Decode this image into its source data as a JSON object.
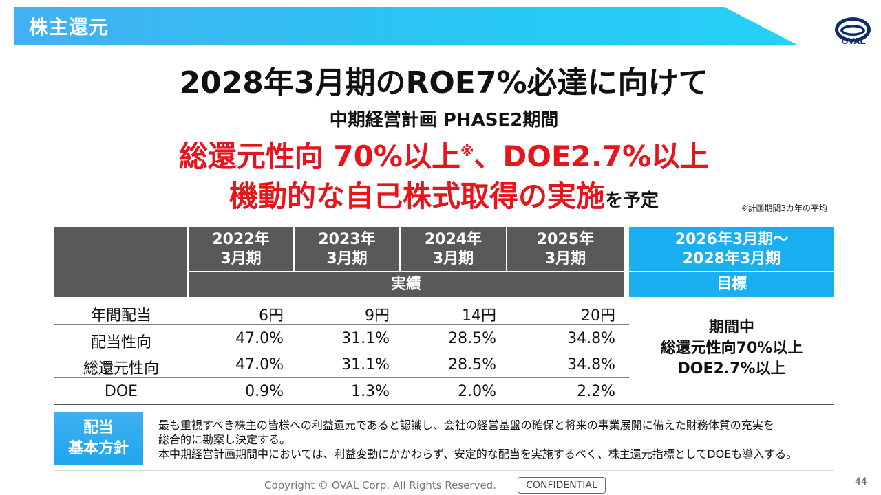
{
  "header": {
    "title": "株主還元",
    "logo_text": "OVAL"
  },
  "headline": "2028年3月期のROE7%必達に向けて",
  "subhead": "中期経営計画 PHASE2期間",
  "red_line1": {
    "main": "総還元性向 70%以上",
    "mark": "※",
    "tail": "、DOE2.7%以上"
  },
  "red_line2": {
    "main": "機動的な自己株式取得の実施",
    "suffix": "を予定"
  },
  "footnote": "※計画期間3カ年の平均",
  "table": {
    "years": [
      {
        "line1": "2022年",
        "line2": "3月期"
      },
      {
        "line1": "2023年",
        "line2": "3月期"
      },
      {
        "line1": "2024年",
        "line2": "3月期"
      },
      {
        "line1": "2025年",
        "line2": "3月期"
      }
    ],
    "target_period": {
      "line1": "2026年3月期～",
      "line2": "2028年3月期"
    },
    "actual_label": "実績",
    "target_label": "目標",
    "rows": [
      {
        "label": "年間配当",
        "values": [
          "6円",
          "9円",
          "14円",
          "20円"
        ]
      },
      {
        "label": "配当性向",
        "values": [
          "47.0%",
          "31.1%",
          "28.5%",
          "34.8%"
        ]
      },
      {
        "label": "総還元性向",
        "values": [
          "47.0%",
          "31.1%",
          "28.5%",
          "34.8%"
        ]
      },
      {
        "label": "DOE",
        "values": [
          "0.9%",
          "1.3%",
          "2.0%",
          "2.2%"
        ]
      }
    ],
    "target_text": [
      "期間中",
      "総還元性向70%以上",
      "DOE2.7%以上"
    ]
  },
  "policy": {
    "badge_line1": "配当",
    "badge_line2": "基本方針",
    "lines": [
      "最も重視すべき株主の皆様への利益還元であると認識し、会社の経営基盤の確保と将来の事業展開に備えた財務体質の充実を",
      "総合的に勘案し決定する。",
      "本中期経営計画期間中においては、利益変動にかかわらず、安定的な配当を実施するべく、株主還元指標としてDOEも導入する。"
    ]
  },
  "footer": {
    "copyright": "Copyright © OVAL Corp. All Rights Reserved.",
    "confidential": "CONFIDENTIAL",
    "page": "44"
  },
  "colors": {
    "accent_blue": "#1aaff0",
    "header_gray": "#595959",
    "emphasis_red": "#e8141b"
  }
}
